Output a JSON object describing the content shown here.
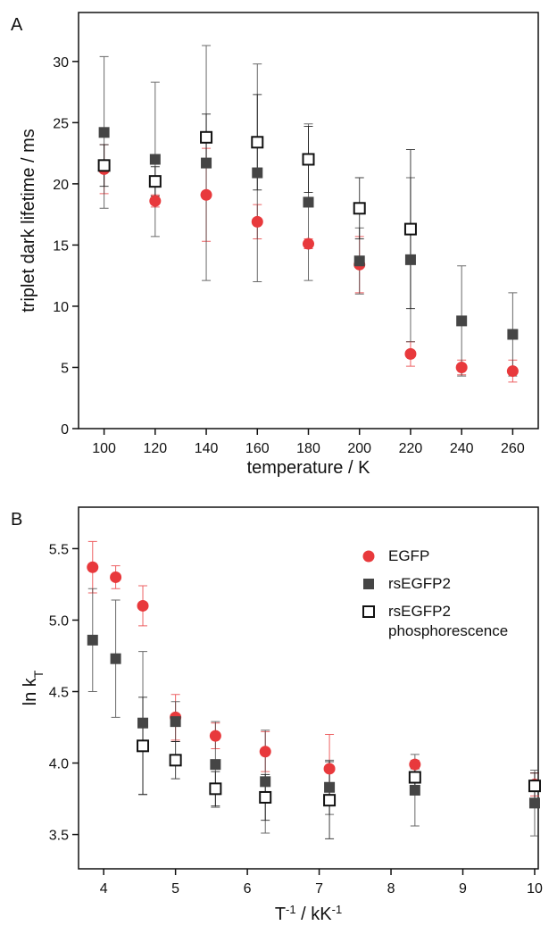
{
  "chart_data": [
    {
      "type": "scatter",
      "panel": "A",
      "ylabel": "triplet dark lifetime / ms",
      "xlabel": "temperature / K",
      "xlim": [
        90,
        270
      ],
      "xticks": [
        100,
        120,
        140,
        160,
        180,
        200,
        220,
        240,
        260
      ],
      "ylim": [
        0,
        34
      ],
      "yticks": [
        0,
        5,
        10,
        15,
        20,
        25,
        30
      ],
      "series": [
        {
          "color": "#e8393c",
          "marker": "circle",
          "x": [
            100,
            120,
            140,
            160,
            180,
            200,
            220,
            240,
            260
          ],
          "values": [
            21.2,
            18.6,
            19.1,
            16.9,
            15.1,
            13.4,
            6.1,
            5.0,
            4.7
          ],
          "errors": [
            2.0,
            0.5,
            3.8,
            1.4,
            0.4,
            2.3,
            1.0,
            0.6,
            0.9
          ]
        },
        {
          "color": "#454545",
          "marker": "square",
          "x": [
            100,
            120,
            140,
            160,
            180,
            200,
            220,
            240,
            260
          ],
          "values": [
            24.2,
            22.0,
            21.7,
            20.9,
            18.5,
            13.7,
            13.8,
            8.8,
            7.7
          ],
          "errors": [
            6.2,
            6.3,
            9.6,
            8.9,
            6.4,
            2.7,
            6.7,
            4.5,
            3.4
          ]
        },
        {
          "color": "#111111",
          "marker": "open-square",
          "x": [
            100,
            120,
            140,
            160,
            180,
            200,
            220
          ],
          "values": [
            21.5,
            20.2,
            23.8,
            23.4,
            22.0,
            18.0,
            16.3
          ],
          "errors": [
            1.7,
            1.2,
            1.9,
            3.9,
            2.7,
            2.5,
            6.5
          ]
        }
      ]
    },
    {
      "type": "scatter",
      "panel": "B",
      "ylabel": [
        "ln k",
        "T"
      ],
      "xlabel": [
        "T",
        "-1",
        " / kK",
        "-1"
      ],
      "xlim": [
        3.65,
        10.05
      ],
      "xticks": [
        4,
        5,
        6,
        7,
        8,
        9,
        10
      ],
      "ylim": [
        3.26,
        5.79
      ],
      "yticks": [
        3.5,
        {
          "value": 4,
          "label": "4.0"
        },
        4.5,
        {
          "value": 5,
          "label": "5.0"
        },
        5.5
      ],
      "legend": "upper right",
      "series": [
        {
          "name": "EGFP",
          "color": "#e8393c",
          "marker": "circle",
          "x": [
            3.846,
            4.167,
            4.545,
            5,
            5.556,
            6.25,
            7.143,
            8.333,
            10
          ],
          "values": [
            5.37,
            5.3,
            5.1,
            4.32,
            4.19,
            4.08,
            3.96,
            3.99,
            3.85
          ],
          "errors": [
            0.18,
            0.08,
            0.14,
            0.16,
            0.09,
            0.14,
            0.24,
            0.03,
            0.08
          ]
        },
        {
          "name": "rsEGFP2",
          "color": "#454545",
          "marker": "square",
          "x": [
            3.846,
            4.167,
            4.545,
            5,
            5.556,
            6.25,
            7.143,
            8.333,
            10
          ],
          "values": [
            4.86,
            4.73,
            4.28,
            4.29,
            3.99,
            3.87,
            3.83,
            3.81,
            3.72
          ],
          "errors": [
            0.36,
            0.41,
            0.5,
            0.14,
            0.3,
            0.36,
            0.19,
            0.25,
            0.23
          ]
        },
        {
          "name": "rsEGFP2 phosphorescence",
          "color": "#111111",
          "marker": "open-square",
          "x": [
            4.545,
            5,
            5.556,
            6.25,
            7.143,
            8.333,
            10
          ],
          "values": [
            4.12,
            4.02,
            3.82,
            3.76,
            3.74,
            3.9,
            3.84
          ],
          "errors": [
            0.34,
            0.13,
            0.12,
            0.16,
            0.27,
            0.06,
            0.09
          ]
        }
      ]
    }
  ]
}
